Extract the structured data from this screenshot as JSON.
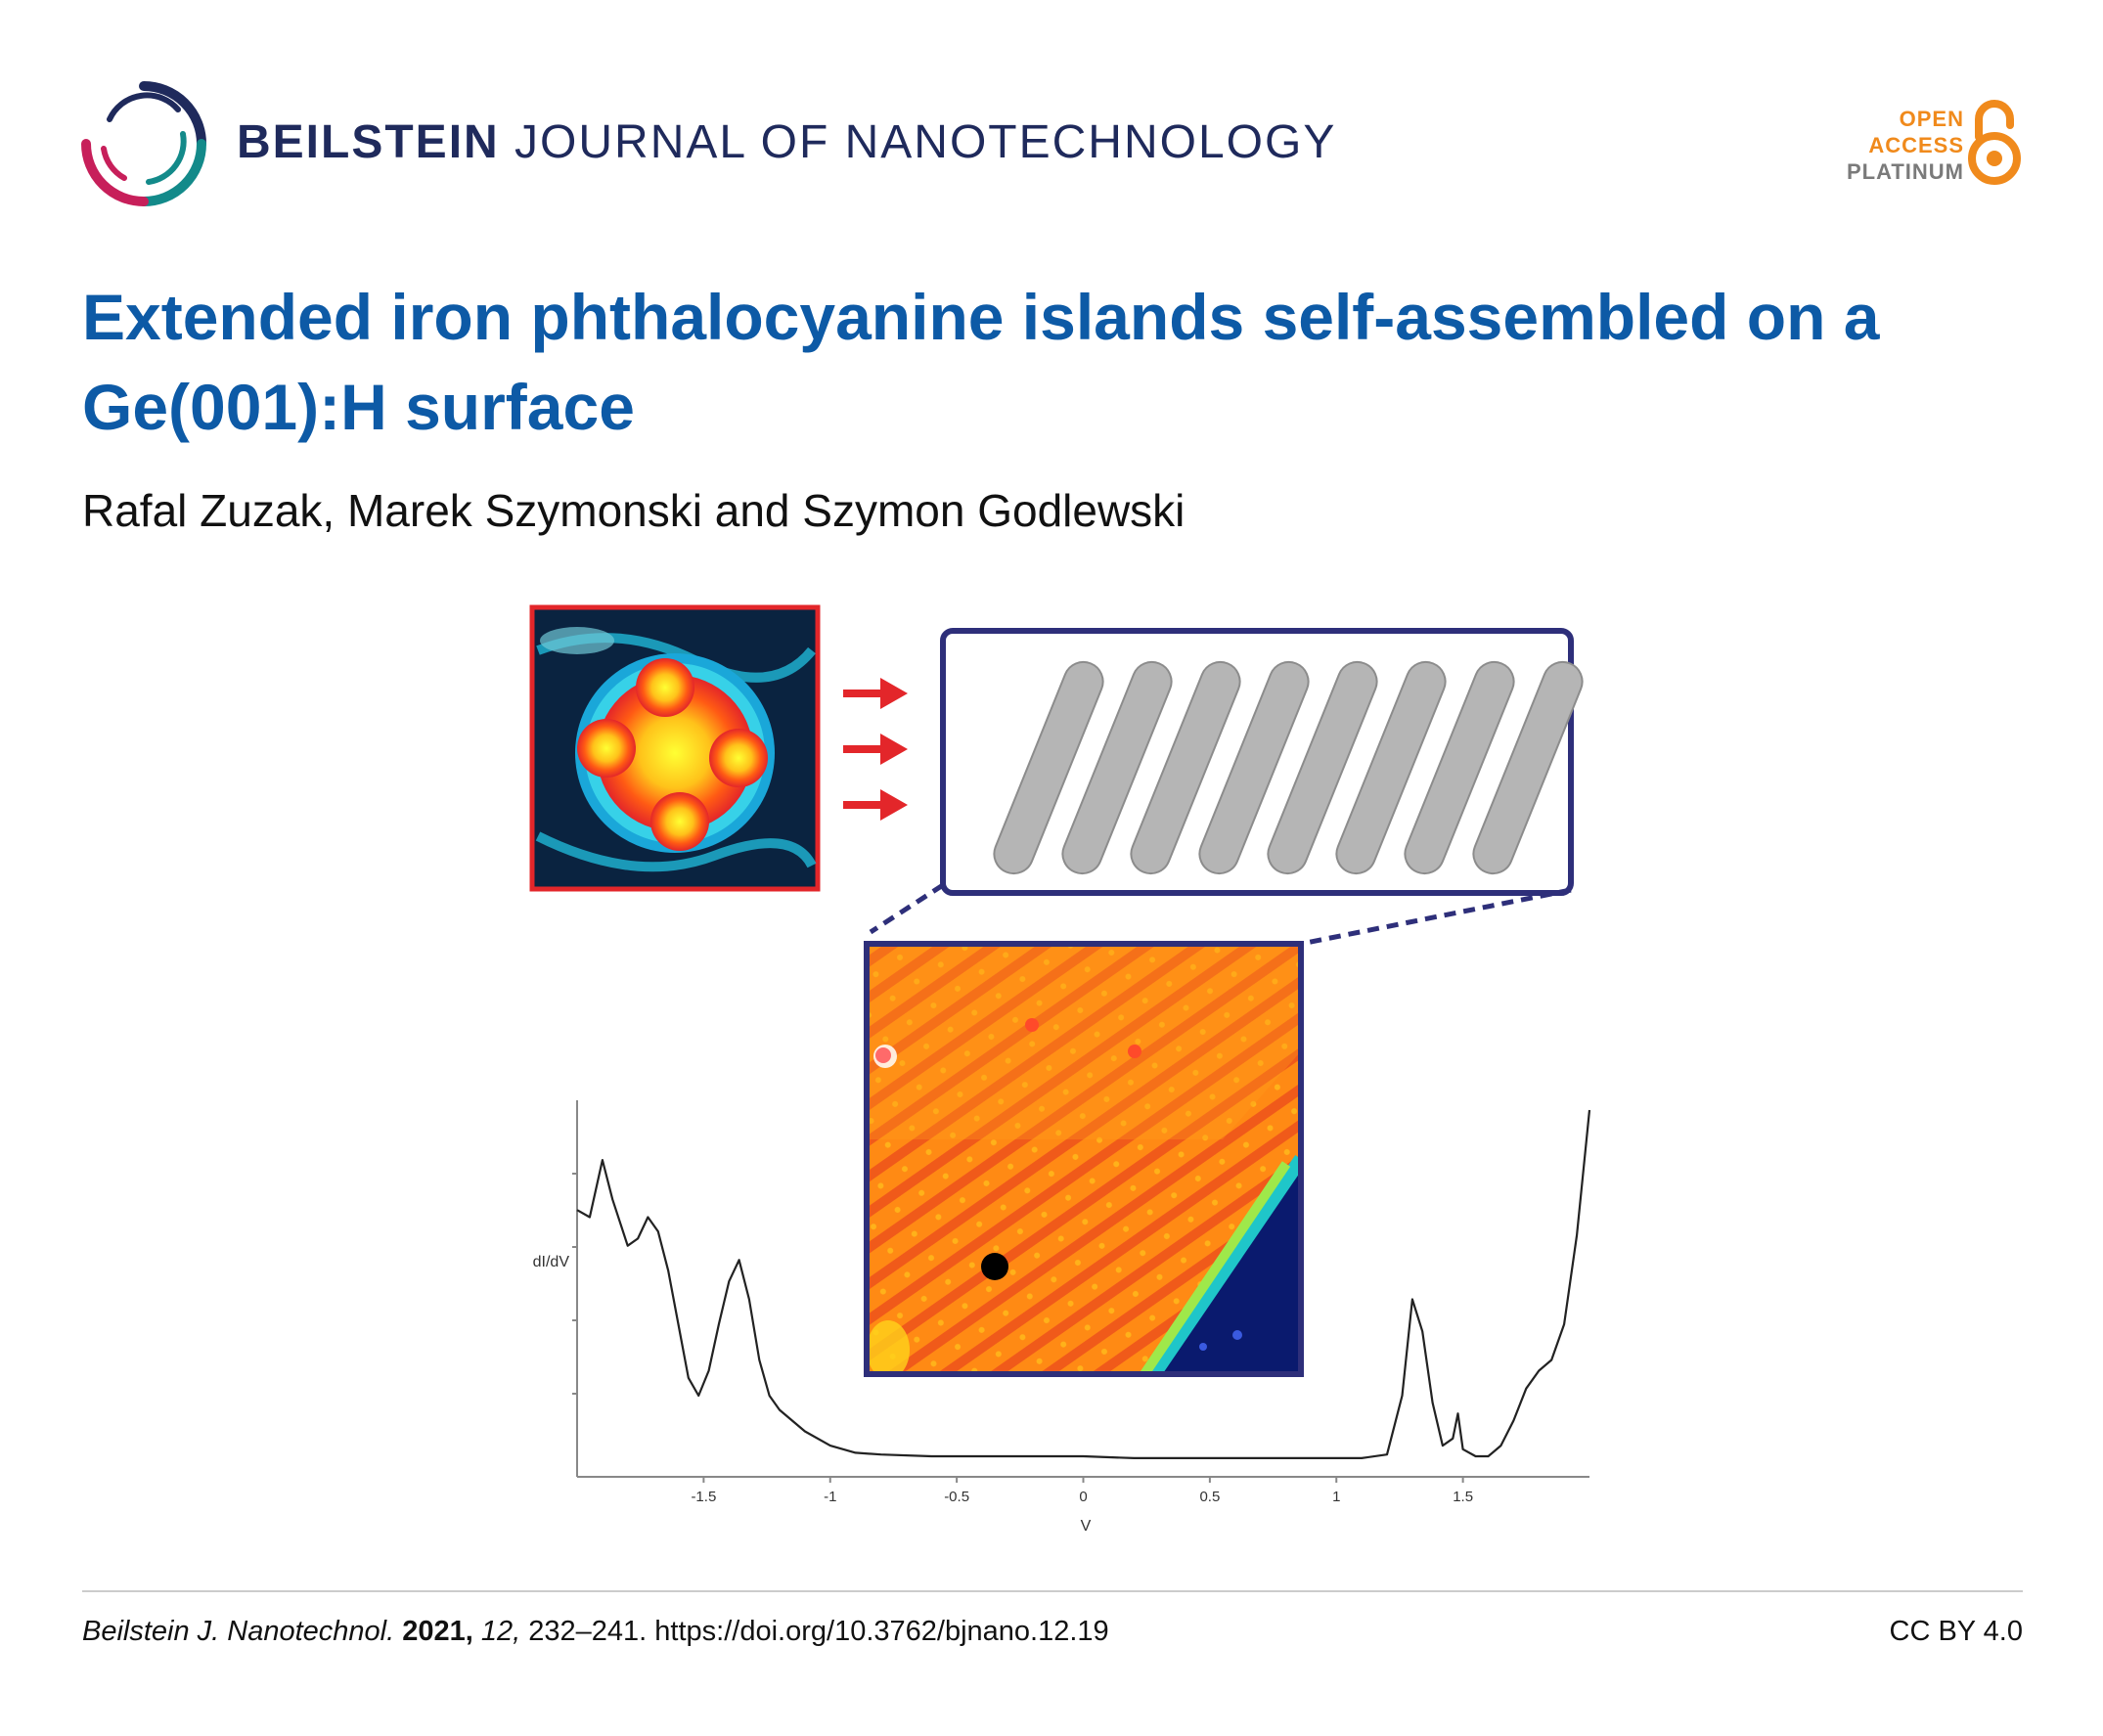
{
  "header": {
    "journal_name_bold": "BEILSTEIN",
    "journal_name_rest": "JOURNAL OF NANOTECHNOLOGY",
    "badge_line1": "OPEN",
    "badge_line2": "ACCESS",
    "badge_line3": "PLATINUM",
    "colors": {
      "journal": "#1f2a5c",
      "badge_orange": "#f08a1c",
      "badge_gray": "#7a7a7a"
    }
  },
  "article": {
    "title": "Extended iron phthalocyanine islands self-assembled on a Ge(001):H surface",
    "authors": "Rafal Zuzak, Marek Szymonski and Szymon Godlewski",
    "title_color": "#0d5aa6"
  },
  "graphical_abstract": {
    "icons": [
      "molecule-stm-image",
      "arrow-icon",
      "stripe-model-icon",
      "island-stm-image"
    ],
    "chart_data": {
      "type": "line",
      "ylabel": "dI/dV",
      "xlabel": "V",
      "xlim": [
        -2.0,
        2.0
      ],
      "xticks": [
        "-1.5",
        "-1",
        "-0.5",
        "0",
        "0.5",
        "1",
        "1.5"
      ],
      "tick_values": [
        -1.5,
        -1,
        -0.5,
        0,
        0.5,
        1,
        1.5
      ],
      "ylim": [
        0,
        1
      ],
      "series": [
        {
          "x": [
            -2.0,
            -1.95,
            -1.9,
            -1.86,
            -1.8,
            -1.76,
            -1.72,
            -1.68,
            -1.64,
            -1.6,
            -1.56,
            -1.52,
            -1.48,
            -1.44,
            -1.4,
            -1.36,
            -1.32,
            -1.28,
            -1.24,
            -1.2,
            -1.1,
            -1.0,
            -0.9,
            -0.8,
            -0.6,
            -0.4,
            -0.2,
            0.0,
            0.2,
            0.4,
            0.6,
            0.8,
            1.0,
            1.1,
            1.2,
            1.26,
            1.3,
            1.34,
            1.38,
            1.42,
            1.46,
            1.48,
            1.5,
            1.55,
            1.6,
            1.65,
            1.7,
            1.75,
            1.8,
            1.85,
            1.9,
            1.95,
            2.0
          ],
          "y": [
            0.72,
            0.7,
            0.86,
            0.75,
            0.62,
            0.64,
            0.7,
            0.66,
            0.55,
            0.4,
            0.25,
            0.2,
            0.27,
            0.4,
            0.52,
            0.58,
            0.47,
            0.3,
            0.2,
            0.16,
            0.1,
            0.06,
            0.04,
            0.035,
            0.03,
            0.03,
            0.03,
            0.03,
            0.025,
            0.025,
            0.025,
            0.025,
            0.025,
            0.025,
            0.035,
            0.2,
            0.47,
            0.38,
            0.18,
            0.06,
            0.08,
            0.15,
            0.05,
            0.03,
            0.03,
            0.06,
            0.13,
            0.22,
            0.27,
            0.3,
            0.4,
            0.65,
            1.0
          ]
        }
      ]
    }
  },
  "footer": {
    "journal_abbrev": "Beilstein J. Nanotechnol.",
    "year": "2021,",
    "volume": "12,",
    "pages_doi": "232–241. https://doi.org/10.3762/bjnano.12.19",
    "license": "CC BY 4.0"
  }
}
